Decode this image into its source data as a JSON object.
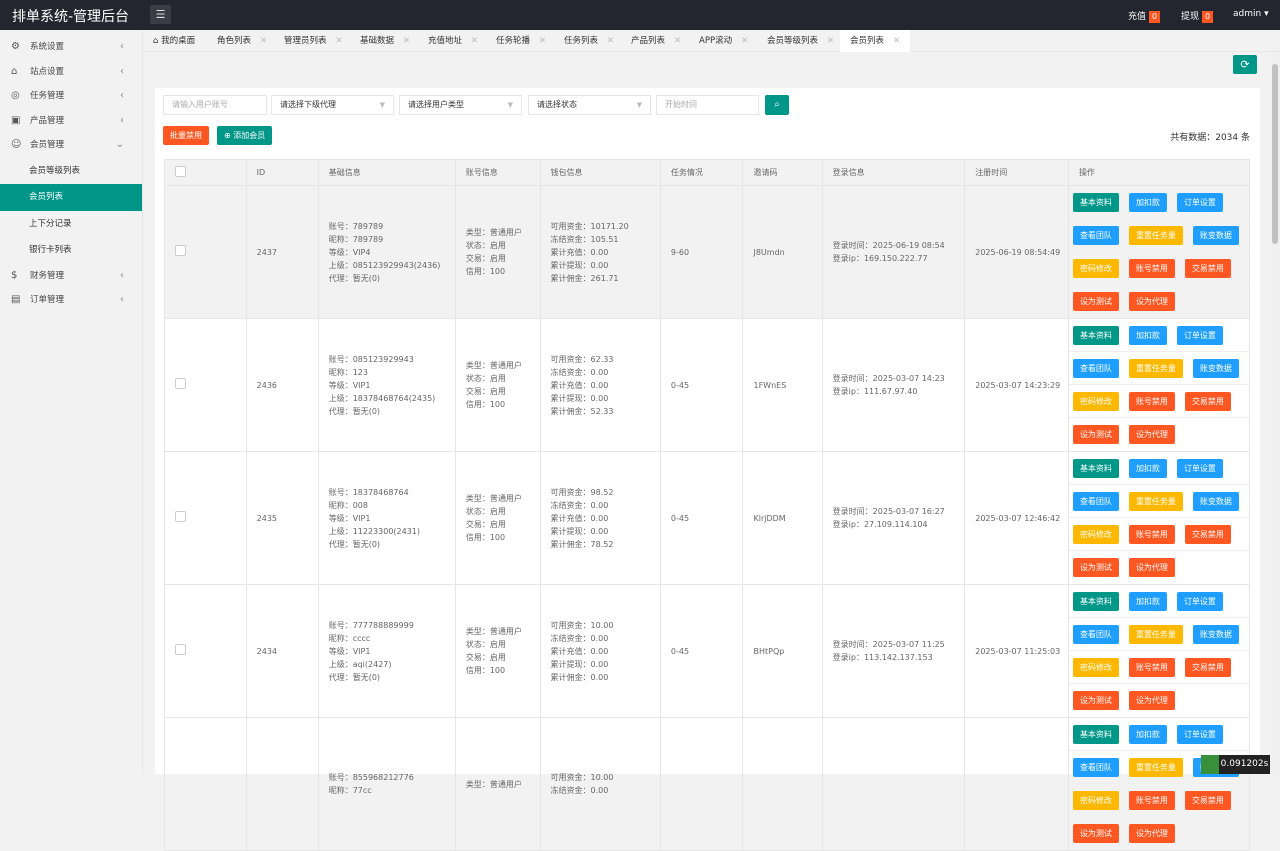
{
  "header": {
    "title": "排单系统-管理后台",
    "recharge": "充值",
    "recharge_count": "0",
    "withdraw": "提现",
    "withdraw_count": "0",
    "user": "admin"
  },
  "sidebar": {
    "items": [
      {
        "label": "系统设置",
        "icon": "gear-icon"
      },
      {
        "label": "站点设置",
        "icon": "site-icon"
      },
      {
        "label": "任务管理",
        "icon": "task-icon"
      },
      {
        "label": "产品管理",
        "icon": "box-icon"
      },
      {
        "label": "会员管理",
        "icon": "user-icon",
        "expanded": true,
        "children": [
          "会员等级列表",
          "会员列表",
          "上下分记录",
          "银行卡列表"
        ],
        "active": "会员列表"
      },
      {
        "label": "财务管理",
        "icon": "dollar-icon"
      },
      {
        "label": "订单管理",
        "icon": "order-icon"
      }
    ]
  },
  "tabs": [
    "我的桌面",
    "角色列表",
    "管理员列表",
    "基础数据",
    "充值地址",
    "任务轮播",
    "任务列表",
    "产品列表",
    "APP滚动",
    "会员等级列表",
    "会员列表"
  ],
  "active_tab": "会员列表",
  "filters": {
    "account_placeholder": "请输入用户账号",
    "agent": "请选择下级代理",
    "type": "请选择用户类型",
    "status": "请选择状态",
    "time_placeholder": "开始时间"
  },
  "actions": {
    "batch_disable": "批量禁用",
    "add_member": "添加会员",
    "total": "共有数据：2034 条"
  },
  "columns": [
    "ID",
    "基础信息",
    "账号信息",
    "钱包信息",
    "任务情况",
    "邀请码",
    "登录信息",
    "注册时间",
    "操作"
  ],
  "op_buttons": [
    [
      [
        "基本资料",
        "g"
      ],
      [
        "加扣款",
        "b"
      ],
      [
        "订单设置",
        "b"
      ]
    ],
    [
      [
        "查看团队",
        "b"
      ],
      [
        "重置任务量",
        "y"
      ],
      [
        "账变数据",
        "b"
      ]
    ],
    [
      [
        "密码修改",
        "y"
      ],
      [
        "账号禁用",
        "r"
      ],
      [
        "交易禁用",
        "r"
      ]
    ],
    [
      [
        "设为测试",
        "r"
      ],
      [
        "设为代理",
        "r"
      ]
    ]
  ],
  "rows": [
    {
      "id": "2437",
      "basic": [
        "账号：789789",
        "昵称：789789",
        "等级：VIP4",
        "上级：085123929943(2436)",
        "代理：暂无(0)"
      ],
      "account": [
        "类型：普通用户",
        "状态：启用",
        "交易：启用",
        "信用：100"
      ],
      "wallet": [
        "可用资金：10171.20",
        "冻结资金：105.51",
        "累计充值：0.00",
        "累计提现：0.00",
        "累计佣金：261.71"
      ],
      "task": "9-60",
      "invite": "J8Umdn",
      "login": [
        "登录时间：2025-06-19 08:54",
        "登录ip：169.150.222.77"
      ],
      "reg": "2025-06-19 08:54:49"
    },
    {
      "id": "2436",
      "basic": [
        "账号：085123929943",
        "昵称：123",
        "等级：VIP1",
        "上级：18378468764(2435)",
        "代理：暂无(0)"
      ],
      "account": [
        "类型：普通用户",
        "状态：启用",
        "交易：启用",
        "信用：100"
      ],
      "wallet": [
        "可用资金：62.33",
        "冻结资金：0.00",
        "累计充值：0.00",
        "累计提现：0.00",
        "累计佣金：52.33"
      ],
      "task": "0-45",
      "invite": "1FWnES",
      "login": [
        "登录时间：2025-03-07 14:23",
        "登录ip：111.67.97.40"
      ],
      "reg": "2025-03-07 14:23:29"
    },
    {
      "id": "2435",
      "basic": [
        "账号：18378468764",
        "昵称：008",
        "等级：VIP1",
        "上级：11223300(2431)",
        "代理：暂无(0)"
      ],
      "account": [
        "类型：普通用户",
        "状态：启用",
        "交易：启用",
        "信用：100"
      ],
      "wallet": [
        "可用资金：98.52",
        "冻结资金：0.00",
        "累计充值：0.00",
        "累计提现：0.00",
        "累计佣金：78.52"
      ],
      "task": "0-45",
      "invite": "KlrjDDM",
      "login": [
        "登录时间：2025-03-07 16:27",
        "登录ip：27.109.114.104"
      ],
      "reg": "2025-03-07 12:46:42"
    },
    {
      "id": "2434",
      "basic": [
        "账号：777788889999",
        "昵称：cccc",
        "等级：VIP1",
        "上级：aqi(2427)",
        "代理：暂无(0)"
      ],
      "account": [
        "类型：普通用户",
        "状态：启用",
        "交易：启用",
        "信用：100"
      ],
      "wallet": [
        "可用资金：10.00",
        "冻结资金：0.00",
        "累计充值：0.00",
        "累计提现：0.00",
        "累计佣金：0.00"
      ],
      "task": "0-45",
      "invite": "BHtPQp",
      "login": [
        "登录时间：2025-03-07 11:25",
        "登录ip：113.142.137.153"
      ],
      "reg": "2025-03-07 11:25:03"
    },
    {
      "id": "",
      "basic": [
        "账号：855968212776",
        "昵称：77cc"
      ],
      "account": [
        "类型：普通用户"
      ],
      "wallet": [
        "可用资金：10.00",
        "冻结资金：0.00"
      ],
      "task": "",
      "invite": "",
      "login": [],
      "reg": ""
    }
  ],
  "timer": "0.091202s",
  "colors": {
    "primary": "#009688",
    "blue": "#1e9fff",
    "warn": "#ffb800",
    "danger": "#ff5722",
    "header": "#23262e"
  }
}
